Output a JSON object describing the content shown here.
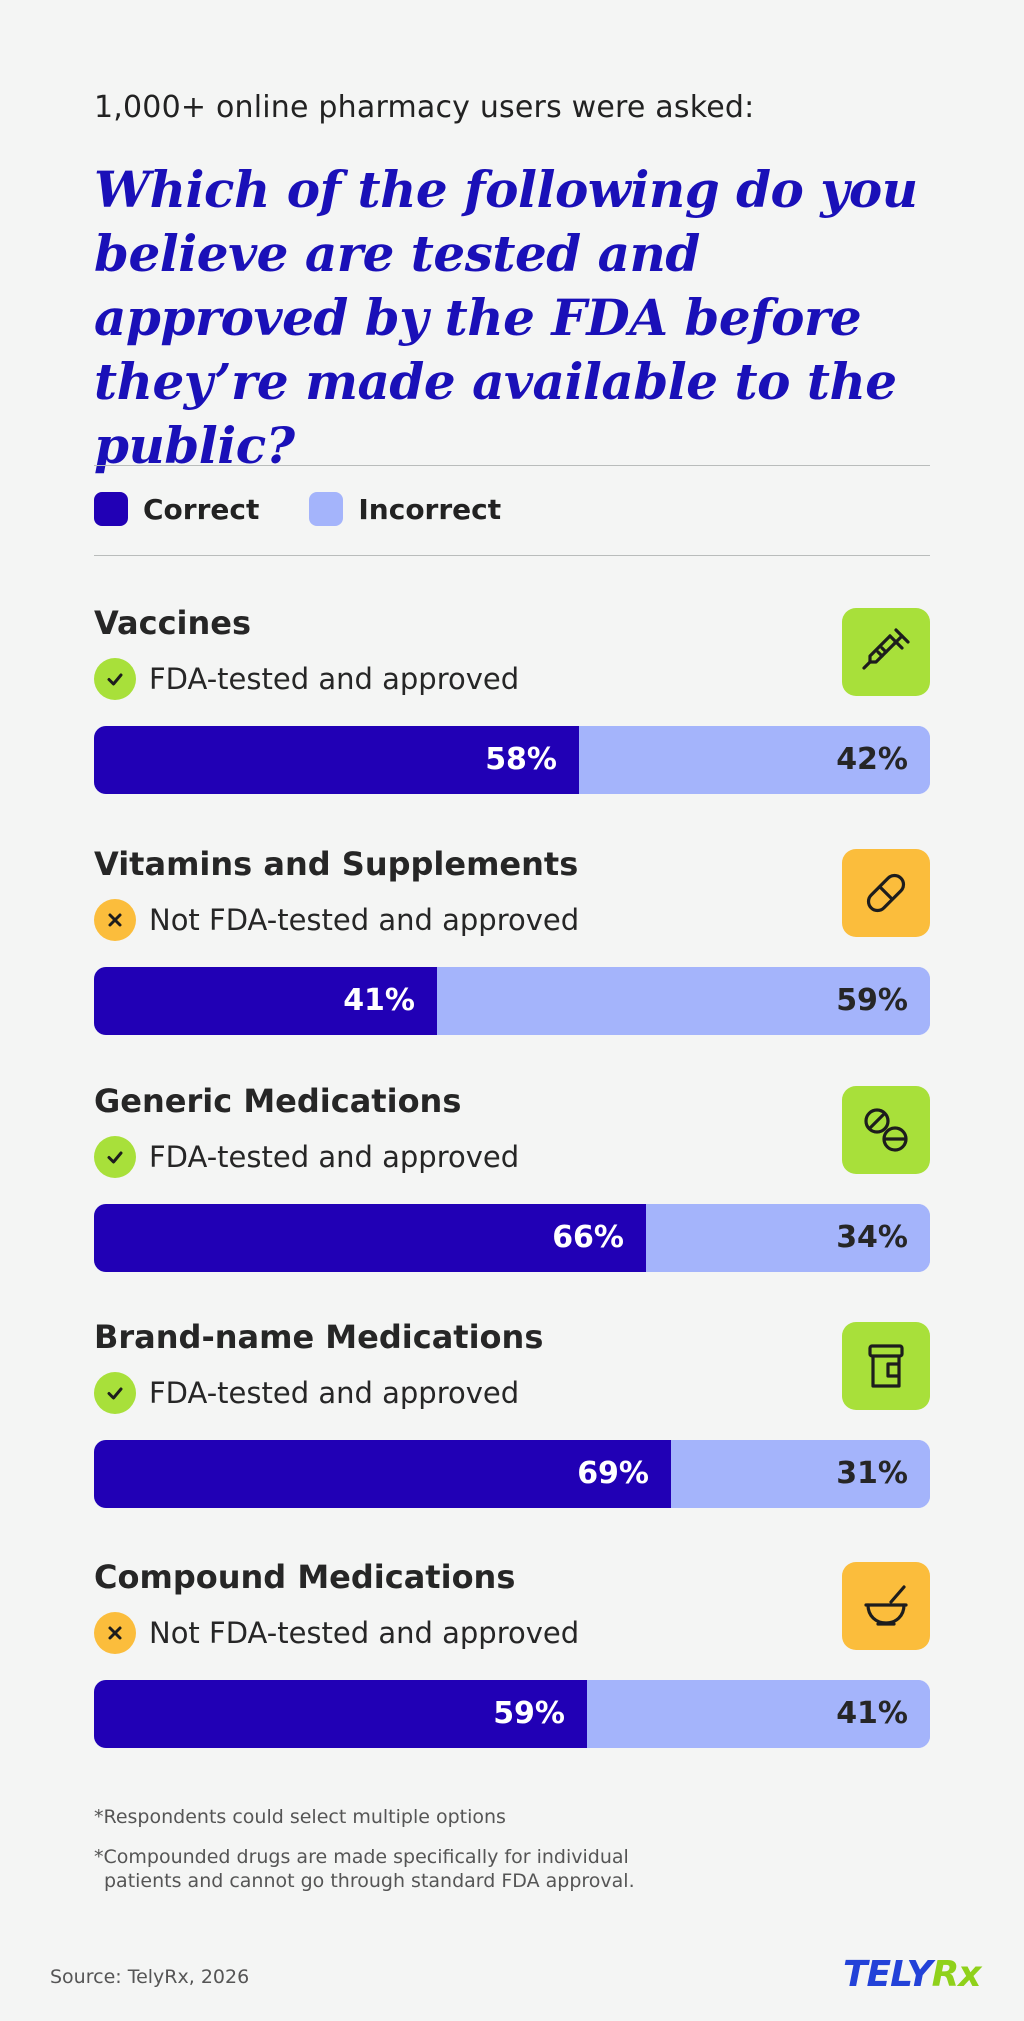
{
  "intro": "1,000+ online pharmacy users were asked:",
  "question": "Which of the following do you believe are tested and approved by the FDA before they’re made available to the public?",
  "legend": [
    {
      "label": "Correct",
      "color": "#2100b5"
    },
    {
      "label": "Incorrect",
      "color": "#a4b4fb"
    }
  ],
  "chart_data": {
    "type": "bar",
    "stacked": true,
    "orientation": "horizontal",
    "categories": [
      "Vaccines",
      "Vitamins and Supplements",
      "Generic Medications",
      "Brand-name Medications",
      "Compound Medications"
    ],
    "series": [
      {
        "name": "Correct",
        "values": [
          58,
          41,
          66,
          69,
          59
        ]
      },
      {
        "name": "Incorrect",
        "values": [
          42,
          59,
          34,
          31,
          41
        ]
      }
    ],
    "value_suffix": "%",
    "xlim": [
      0,
      100
    ],
    "legend_position": "top-left"
  },
  "items": [
    {
      "title": "Vaccines",
      "status": "FDA-tested and approved",
      "approved": true,
      "icon": "syringe-icon",
      "correct": 58,
      "incorrect": 42,
      "correct_label": "58%",
      "incorrect_label": "42%"
    },
    {
      "title": "Vitamins and Supplements",
      "status": "Not FDA-tested and approved",
      "approved": false,
      "icon": "pill-capsule-icon",
      "correct": 41,
      "incorrect": 59,
      "correct_label": "41%",
      "incorrect_label": "59%"
    },
    {
      "title": "Generic Medications",
      "status": "FDA-tested and approved",
      "approved": true,
      "icon": "tablets-icon",
      "correct": 66,
      "incorrect": 34,
      "correct_label": "66%",
      "incorrect_label": "34%"
    },
    {
      "title": "Brand-name Medications",
      "status": "FDA-tested and approved",
      "approved": true,
      "icon": "medicine-bottle-icon",
      "correct": 69,
      "incorrect": 31,
      "correct_label": "69%",
      "incorrect_label": "31%"
    },
    {
      "title": "Compound Medications",
      "status": "Not FDA-tested and approved",
      "approved": false,
      "icon": "mortar-pestle-icon",
      "correct": 59,
      "incorrect": 41,
      "correct_label": "59%",
      "incorrect_label": "41%"
    }
  ],
  "colors": {
    "approved_badge": "#a8e03a",
    "not_approved_badge": "#fbbd3c",
    "approved_icon_bg": "#a8e03a",
    "not_approved_icon_bg": "#fbbd3c",
    "title": "#1a10b8"
  },
  "notes": [
    "*Respondents could select multiple options",
    "*Compounded drugs are made specifically for individual",
    "patients and cannot go through standard FDA approval."
  ],
  "source": "Source: TelyRx, 2026",
  "logo": {
    "part1": "TELY",
    "part2": "Rx"
  }
}
